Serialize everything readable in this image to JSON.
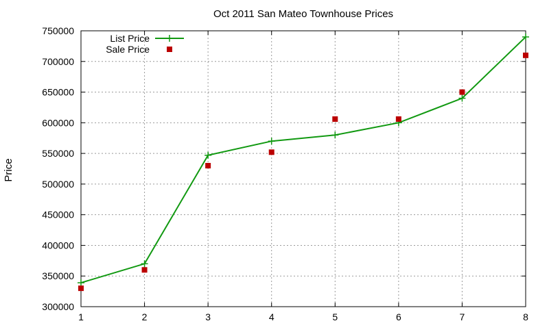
{
  "chart_data": {
    "type": "line",
    "title": "Oct 2011 San Mateo Townhouse Prices",
    "xlabel": "",
    "ylabel": "Price",
    "x": [
      1,
      2,
      3,
      4,
      5,
      6,
      7,
      8
    ],
    "xlim": [
      1,
      8
    ],
    "ylim": [
      300000,
      750000
    ],
    "x_ticks": [
      "1",
      "2",
      "3",
      "4",
      "5",
      "6",
      "7",
      "8"
    ],
    "y_ticks": [
      "300000",
      "350000",
      "400000",
      "450000",
      "500000",
      "550000",
      "600000",
      "650000",
      "700000",
      "750000"
    ],
    "grid": true,
    "legend_position": "top-left",
    "series": [
      {
        "name": "List Price",
        "style": "line-with-plus-markers",
        "color": "#119911",
        "values": [
          339000,
          370000,
          547000,
          570000,
          580000,
          600000,
          640000,
          740000
        ]
      },
      {
        "name": "Sale Price",
        "style": "square-points",
        "color": "#bb0000",
        "values": [
          330000,
          360000,
          530000,
          552000,
          606000,
          606000,
          650000,
          710000
        ]
      }
    ]
  }
}
